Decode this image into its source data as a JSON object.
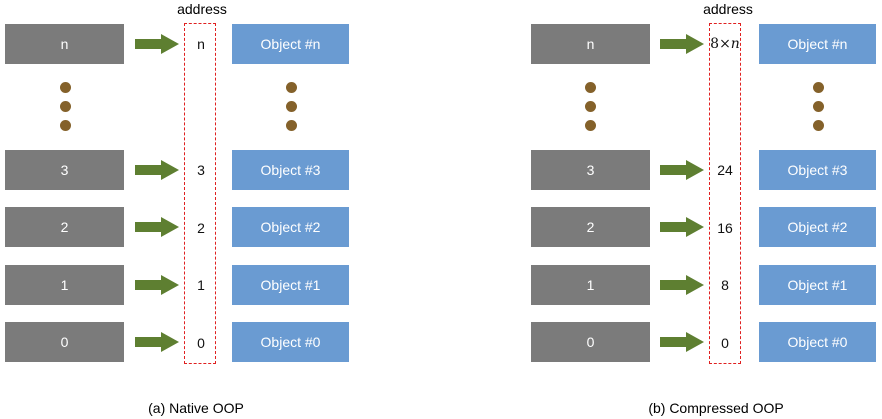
{
  "panels": [
    {
      "address_header": "address",
      "rows": [
        {
          "ref": "n",
          "address": "n",
          "object": "Object #n"
        },
        {
          "ref": "3",
          "address": "3",
          "object": "Object #3"
        },
        {
          "ref": "2",
          "address": "2",
          "object": "Object #2"
        },
        {
          "ref": "1",
          "address": "1",
          "object": "Object #1"
        },
        {
          "ref": "0",
          "address": "0",
          "object": "Object #0"
        }
      ],
      "caption": "(a) Native OOP"
    },
    {
      "address_header": "address",
      "rows": [
        {
          "ref": "n",
          "address": "8×𝑛",
          "object": "Object #n"
        },
        {
          "ref": "3",
          "address": "24",
          "object": "Object #3"
        },
        {
          "ref": "2",
          "address": "16",
          "object": "Object #2"
        },
        {
          "ref": "1",
          "address": "8",
          "object": "Object #1"
        },
        {
          "ref": "0",
          "address": "0",
          "object": "Object #0"
        }
      ],
      "caption": "(b) Compressed OOP"
    }
  ],
  "colors": {
    "reference_box": "#7b7b7b",
    "object_box": "#6a9bd2",
    "arrow": "#5e7f31",
    "dots": "#84612a",
    "address_border": "#e02020"
  },
  "icons": {
    "arrow": "right-arrow-icon",
    "ellipsis": "vertical-ellipsis-dots"
  }
}
